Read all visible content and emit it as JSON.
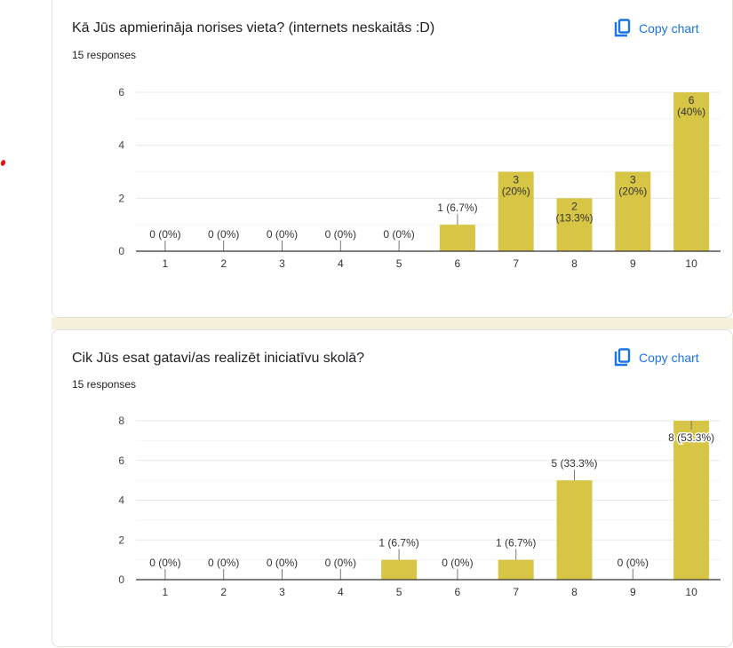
{
  "colors": {
    "bar": "#d7c545",
    "accent": "#1a73e8",
    "axis": "#333333",
    "grid_major": "#e8e8e8",
    "grid_minor": "#f4f4f4",
    "background_strip": "#f7f1dc"
  },
  "cards": [
    {
      "title": "Kā Jūs apmierināja norises vieta? (internets neskaitās :D)",
      "responses": "15 responses",
      "copy_label": "Copy chart",
      "copy_icon": "copy-icon"
    },
    {
      "title": "Cik Jūs esat gatavi/as realizēt iniciatīvu skolā?",
      "responses": "15 responses",
      "copy_label": "Copy chart",
      "copy_icon": "copy-icon"
    }
  ],
  "chart_data": [
    {
      "type": "bar",
      "title": "Kā Jūs apmierināja norises vieta? (internets neskaitās :D)",
      "subtitle": "15 responses",
      "categories": [
        "1",
        "2",
        "3",
        "4",
        "5",
        "6",
        "7",
        "8",
        "9",
        "10"
      ],
      "values": [
        0,
        0,
        0,
        0,
        0,
        1,
        3,
        2,
        3,
        6
      ],
      "labels": [
        "0 (0%)",
        "0 (0%)",
        "0 (0%)",
        "0 (0%)",
        "0 (0%)",
        "1 (6.7%)",
        "3 (20%)",
        "2 (13.3%)",
        "3 (20%)",
        "6 (40%)"
      ],
      "yticks": [
        0,
        2,
        4,
        6
      ],
      "ylim": [
        0,
        6
      ],
      "xlabel": "",
      "ylabel": "",
      "grid": true,
      "legend": "none"
    },
    {
      "type": "bar",
      "title": "Cik Jūs esat gatavi/as realizēt iniciatīvu skolā?",
      "subtitle": "15 responses",
      "categories": [
        "1",
        "2",
        "3",
        "4",
        "5",
        "6",
        "7",
        "8",
        "9",
        "10"
      ],
      "values": [
        0,
        0,
        0,
        0,
        1,
        0,
        1,
        5,
        0,
        8
      ],
      "labels": [
        "0 (0%)",
        "0 (0%)",
        "0 (0%)",
        "0 (0%)",
        "1 (6.7%)",
        "0 (0%)",
        "1 (6.7%)",
        "5 (33.3%)",
        "0 (0%)",
        "8 (53.3%)"
      ],
      "yticks": [
        0,
        2,
        4,
        6,
        8
      ],
      "ylim": [
        0,
        8
      ],
      "xlabel": "",
      "ylabel": "",
      "grid": true,
      "legend": "none"
    }
  ]
}
